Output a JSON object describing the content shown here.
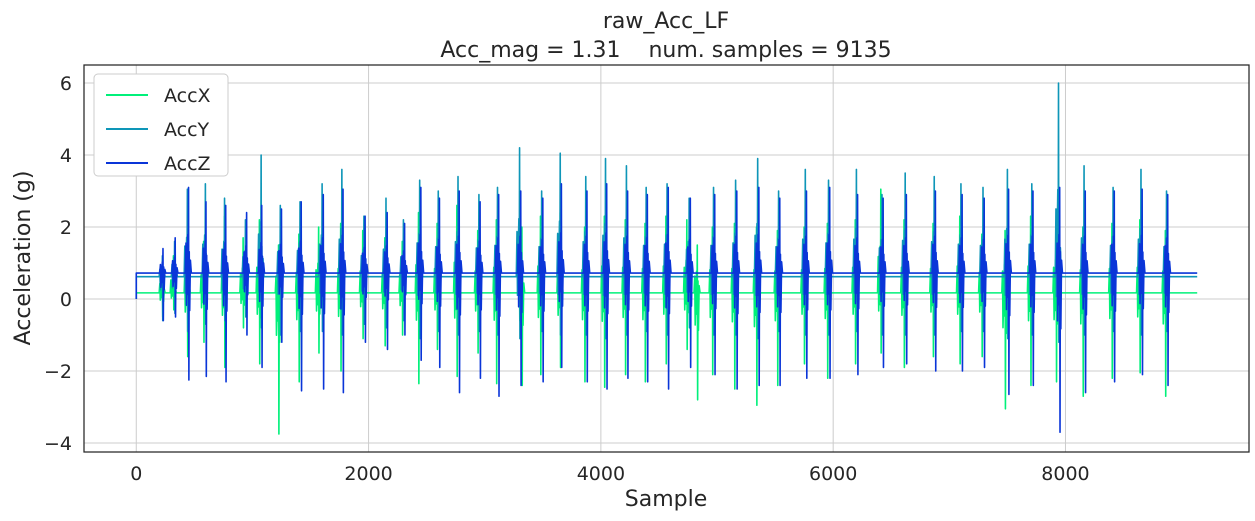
{
  "chart_data": {
    "type": "line",
    "title": "raw_Acc_LF",
    "subtitle": "Acc_mag = 1.31    num. samples = 9135",
    "xlabel": "Sample",
    "ylabel": "Acceleration (g)",
    "xlim": [
      -450,
      9580
    ],
    "ylim": [
      -4.25,
      6.5
    ],
    "x_ticks": [
      0,
      2000,
      4000,
      6000,
      8000
    ],
    "x_tick_labels": [
      "0",
      "2000",
      "4000",
      "6000",
      "8000"
    ],
    "y_ticks": [
      -4,
      -2,
      0,
      2,
      4,
      6
    ],
    "y_tick_labels": [
      "−4",
      "−2",
      "0",
      "2",
      "4",
      "6"
    ],
    "grid": true,
    "legend_position": "top-left",
    "num_samples": 9135,
    "series": [
      {
        "name": "AccX",
        "color": "#00f07a",
        "baseline": 0.17,
        "spikes": [
          {
            "x": 225,
            "high": 0.9,
            "low": -0.5
          },
          {
            "x": 320,
            "high": 1.2,
            "low": -0.3
          },
          {
            "x": 440,
            "high": 1.8,
            "low": -1.6
          },
          {
            "x": 580,
            "high": 1.6,
            "low": -1.2
          },
          {
            "x": 760,
            "high": 2.3,
            "low": -1.9
          },
          {
            "x": 920,
            "high": 1.7,
            "low": -0.8
          },
          {
            "x": 1060,
            "high": 2.2,
            "low": -1.8
          },
          {
            "x": 1225,
            "high": 1.5,
            "low": -3.75
          },
          {
            "x": 1400,
            "high": 1.8,
            "low": -2.3
          },
          {
            "x": 1570,
            "high": 2.0,
            "low": -1.5
          },
          {
            "x": 1760,
            "high": 2.1,
            "low": -2.0
          },
          {
            "x": 1950,
            "high": 1.9,
            "low": -1.1
          },
          {
            "x": 2140,
            "high": 1.7,
            "low": -1.3
          },
          {
            "x": 2290,
            "high": 1.6,
            "low": -1.0
          },
          {
            "x": 2430,
            "high": 2.4,
            "low": -2.35
          },
          {
            "x": 2590,
            "high": 2.1,
            "low": -1.4
          },
          {
            "x": 2760,
            "high": 2.6,
            "low": -2.15
          },
          {
            "x": 2940,
            "high": 1.9,
            "low": -1.5
          },
          {
            "x": 3100,
            "high": 2.2,
            "low": -2.35
          },
          {
            "x": 3320,
            "high": 2.0,
            "low": -2.4
          },
          {
            "x": 3480,
            "high": 2.3,
            "low": -2.1
          },
          {
            "x": 3650,
            "high": 2.4,
            "low": -1.9
          },
          {
            "x": 3860,
            "high": 2.0,
            "low": -2.3
          },
          {
            "x": 4030,
            "high": 2.3,
            "low": -2.45
          },
          {
            "x": 4210,
            "high": 2.2,
            "low": -2.1
          },
          {
            "x": 4380,
            "high": 2.1,
            "low": -2.3
          },
          {
            "x": 4560,
            "high": 2.3,
            "low": -1.8
          },
          {
            "x": 4740,
            "high": 2.2,
            "low": -1.4
          },
          {
            "x": 4830,
            "high": 1.5,
            "low": -2.8
          },
          {
            "x": 4960,
            "high": 2.0,
            "low": -2.1
          },
          {
            "x": 5150,
            "high": 2.1,
            "low": -2.5
          },
          {
            "x": 5340,
            "high": 2.0,
            "low": -2.95
          },
          {
            "x": 5520,
            "high": 1.9,
            "low": -2.4
          },
          {
            "x": 5750,
            "high": 2.0,
            "low": -1.8
          },
          {
            "x": 5950,
            "high": 2.1,
            "low": -2.2
          },
          {
            "x": 6190,
            "high": 2.2,
            "low": -1.8
          },
          {
            "x": 6410,
            "high": 3.05,
            "low": -1.5
          },
          {
            "x": 6610,
            "high": 2.2,
            "low": -1.9
          },
          {
            "x": 6860,
            "high": 2.1,
            "low": -1.6
          },
          {
            "x": 7090,
            "high": 2.3,
            "low": -1.8
          },
          {
            "x": 7280,
            "high": 1.8,
            "low": -1.6
          },
          {
            "x": 7480,
            "high": 1.9,
            "low": -3.05
          },
          {
            "x": 7700,
            "high": 2.3,
            "low": -2.4
          },
          {
            "x": 7920,
            "high": 2.2,
            "low": -2.3
          },
          {
            "x": 8150,
            "high": 2.0,
            "low": -2.7
          },
          {
            "x": 8400,
            "high": 2.1,
            "low": -2.2
          },
          {
            "x": 8640,
            "high": 2.2,
            "low": -2.05
          },
          {
            "x": 8860,
            "high": 1.9,
            "low": -2.7
          }
        ]
      },
      {
        "name": "AccY",
        "color": "#0e96b8",
        "baseline": 0.62,
        "spikes": [
          {
            "x": 225,
            "high": 1.2,
            "low": -0.6
          },
          {
            "x": 330,
            "high": 1.6,
            "low": -0.4
          },
          {
            "x": 440,
            "high": 3.05,
            "low": -0.9
          },
          {
            "x": 595,
            "high": 3.2,
            "low": -0.7
          },
          {
            "x": 760,
            "high": 2.8,
            "low": -0.6
          },
          {
            "x": 940,
            "high": 2.2,
            "low": -0.5
          },
          {
            "x": 1075,
            "high": 4.0,
            "low": -0.8
          },
          {
            "x": 1240,
            "high": 2.6,
            "low": -1.0
          },
          {
            "x": 1410,
            "high": 2.7,
            "low": -0.9
          },
          {
            "x": 1600,
            "high": 3.2,
            "low": -0.9
          },
          {
            "x": 1770,
            "high": 3.6,
            "low": -1.0
          },
          {
            "x": 1960,
            "high": 2.3,
            "low": -0.7
          },
          {
            "x": 2150,
            "high": 2.8,
            "low": -0.8
          },
          {
            "x": 2300,
            "high": 2.2,
            "low": -0.6
          },
          {
            "x": 2440,
            "high": 3.3,
            "low": -1.1
          },
          {
            "x": 2600,
            "high": 3.0,
            "low": -0.9
          },
          {
            "x": 2770,
            "high": 3.4,
            "low": -1.0
          },
          {
            "x": 2950,
            "high": 2.9,
            "low": -0.9
          },
          {
            "x": 3110,
            "high": 3.1,
            "low": -1.0
          },
          {
            "x": 3300,
            "high": 4.2,
            "low": -1.1
          },
          {
            "x": 3490,
            "high": 3.0,
            "low": -0.9
          },
          {
            "x": 3650,
            "high": 4.05,
            "low": -1.0
          },
          {
            "x": 3870,
            "high": 3.4,
            "low": -1.0
          },
          {
            "x": 4040,
            "high": 3.9,
            "low": -1.1
          },
          {
            "x": 4220,
            "high": 3.7,
            "low": -1.0
          },
          {
            "x": 4390,
            "high": 3.1,
            "low": -0.9
          },
          {
            "x": 4570,
            "high": 3.2,
            "low": -1.0
          },
          {
            "x": 4760,
            "high": 2.8,
            "low": -0.8
          },
          {
            "x": 4970,
            "high": 3.1,
            "low": -1.0
          },
          {
            "x": 5160,
            "high": 3.3,
            "low": -1.0
          },
          {
            "x": 5350,
            "high": 3.9,
            "low": -1.1
          },
          {
            "x": 5530,
            "high": 3.0,
            "low": -0.9
          },
          {
            "x": 5760,
            "high": 3.6,
            "low": -1.0
          },
          {
            "x": 5960,
            "high": 3.3,
            "low": -1.0
          },
          {
            "x": 6200,
            "high": 3.6,
            "low": -0.9
          },
          {
            "x": 6420,
            "high": 2.9,
            "low": -1.0
          },
          {
            "x": 6620,
            "high": 3.5,
            "low": -1.0
          },
          {
            "x": 6870,
            "high": 3.4,
            "low": -1.0
          },
          {
            "x": 7100,
            "high": 3.2,
            "low": -0.9
          },
          {
            "x": 7290,
            "high": 3.1,
            "low": -0.9
          },
          {
            "x": 7500,
            "high": 3.6,
            "low": -1.1
          },
          {
            "x": 7710,
            "high": 3.2,
            "low": -1.0
          },
          {
            "x": 7940,
            "high": 6.0,
            "low": -1.2
          },
          {
            "x": 8160,
            "high": 3.7,
            "low": -1.0
          },
          {
            "x": 8410,
            "high": 3.1,
            "low": -0.9
          },
          {
            "x": 8650,
            "high": 3.6,
            "low": -1.0
          },
          {
            "x": 8870,
            "high": 3.0,
            "low": -0.9
          }
        ]
      },
      {
        "name": "AccZ",
        "color": "#0a35d8",
        "baseline": 0.72,
        "spikes": [
          {
            "x": 230,
            "high": 1.4,
            "low": -0.6
          },
          {
            "x": 335,
            "high": 1.7,
            "low": -0.5
          },
          {
            "x": 450,
            "high": 3.1,
            "low": -2.25
          },
          {
            "x": 600,
            "high": 2.7,
            "low": -2.15
          },
          {
            "x": 770,
            "high": 2.6,
            "low": -2.3
          },
          {
            "x": 950,
            "high": 2.4,
            "low": -1.0
          },
          {
            "x": 1080,
            "high": 2.6,
            "low": -1.9
          },
          {
            "x": 1250,
            "high": 2.5,
            "low": -1.2
          },
          {
            "x": 1420,
            "high": 2.7,
            "low": -2.55
          },
          {
            "x": 1610,
            "high": 2.9,
            "low": -2.5
          },
          {
            "x": 1780,
            "high": 3.05,
            "low": -2.6
          },
          {
            "x": 1970,
            "high": 2.3,
            "low": -1.2
          },
          {
            "x": 2160,
            "high": 2.4,
            "low": -1.4
          },
          {
            "x": 2310,
            "high": 2.1,
            "low": -1.0
          },
          {
            "x": 2450,
            "high": 3.1,
            "low": -1.7
          },
          {
            "x": 2610,
            "high": 2.8,
            "low": -1.9
          },
          {
            "x": 2780,
            "high": 3.0,
            "low": -2.6
          },
          {
            "x": 2960,
            "high": 2.7,
            "low": -2.2
          },
          {
            "x": 3120,
            "high": 2.9,
            "low": -2.7
          },
          {
            "x": 3310,
            "high": 3.0,
            "low": -2.4
          },
          {
            "x": 3500,
            "high": 2.8,
            "low": -2.3
          },
          {
            "x": 3660,
            "high": 3.2,
            "low": -1.9
          },
          {
            "x": 3880,
            "high": 3.0,
            "low": -2.3
          },
          {
            "x": 4050,
            "high": 3.2,
            "low": -2.5
          },
          {
            "x": 4230,
            "high": 3.0,
            "low": -2.2
          },
          {
            "x": 4400,
            "high": 2.9,
            "low": -2.3
          },
          {
            "x": 4580,
            "high": 3.1,
            "low": -2.5
          },
          {
            "x": 4770,
            "high": 2.8,
            "low": -1.9
          },
          {
            "x": 4980,
            "high": 2.9,
            "low": -2.1
          },
          {
            "x": 5170,
            "high": 3.0,
            "low": -2.5
          },
          {
            "x": 5360,
            "high": 3.1,
            "low": -2.4
          },
          {
            "x": 5540,
            "high": 2.8,
            "low": -2.4
          },
          {
            "x": 5770,
            "high": 3.0,
            "low": -2.2
          },
          {
            "x": 5970,
            "high": 3.1,
            "low": -2.2
          },
          {
            "x": 6210,
            "high": 2.9,
            "low": -2.1
          },
          {
            "x": 6430,
            "high": 2.8,
            "low": -1.9
          },
          {
            "x": 6630,
            "high": 2.9,
            "low": -1.8
          },
          {
            "x": 6880,
            "high": 3.0,
            "low": -2.0
          },
          {
            "x": 7110,
            "high": 2.9,
            "low": -2.0
          },
          {
            "x": 7300,
            "high": 2.8,
            "low": -1.9
          },
          {
            "x": 7510,
            "high": 3.05,
            "low": -2.65
          },
          {
            "x": 7720,
            "high": 3.0,
            "low": -2.4
          },
          {
            "x": 7950,
            "high": 3.1,
            "low": -3.7
          },
          {
            "x": 8170,
            "high": 3.0,
            "low": -2.6
          },
          {
            "x": 8420,
            "high": 3.0,
            "low": -2.3
          },
          {
            "x": 8660,
            "high": 3.05,
            "low": -2.1
          },
          {
            "x": 8880,
            "high": 2.9,
            "low": -2.4
          }
        ]
      }
    ]
  }
}
